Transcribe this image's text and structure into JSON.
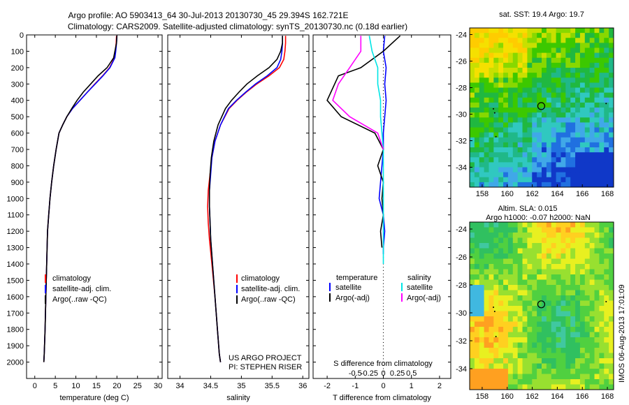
{
  "header": {
    "line1": "Argo profile: AO 5903413_64 30-Jul-2013 20130730_45 29.394S 162.721E",
    "line2": "Climatology: CARS2009. Satellite-adjusted climatology: synTS_20130730.nc (0.18d earlier)"
  },
  "colors": {
    "climatology": "#ff0000",
    "satellite": "#0000ff",
    "argo": "#000000",
    "sat_salinity": "#00e5e5",
    "argo_salinity": "#ff00ff"
  },
  "chart_data": [
    {
      "type": "line",
      "name": "temperature",
      "xlabel": "temperature (deg C)",
      "xlim": [
        -2,
        31
      ],
      "ylim": [
        2100,
        0
      ],
      "y_inverted": true,
      "xticks": [
        0,
        5,
        10,
        15,
        20,
        25,
        30
      ],
      "yticks": [
        0,
        100,
        200,
        300,
        400,
        500,
        600,
        700,
        800,
        900,
        1000,
        1100,
        1200,
        1300,
        1400,
        1500,
        1600,
        1700,
        1800,
        1900,
        2000
      ],
      "legend": [
        "climatology",
        "satellite-adj. clim.",
        "Argo(..raw -QC)"
      ],
      "series": [
        {
          "name": "climatology",
          "x": [
            19.9,
            19.8,
            19.6,
            19.4,
            18.2,
            16.5,
            14.6,
            12.8,
            11.0,
            9.2,
            7.8,
            6.8,
            5.9,
            5.2,
            4.6,
            4.1,
            3.7,
            3.4,
            3.1,
            2.9,
            2.7,
            2.5,
            2.3,
            2.2
          ],
          "y": [
            5,
            50,
            100,
            140,
            200,
            250,
            300,
            350,
            400,
            450,
            500,
            550,
            600,
            700,
            800,
            900,
            1000,
            1100,
            1200,
            1400,
            1600,
            1800,
            1950,
            2000
          ]
        },
        {
          "name": "satellite",
          "x": [
            20.0,
            19.9,
            19.7,
            19.5,
            18.3,
            16.6,
            14.7,
            12.8,
            11.0,
            9.2,
            7.8,
            6.8,
            5.9,
            5.2,
            4.6,
            4.1,
            3.7,
            3.4,
            3.1,
            2.9,
            2.7,
            2.5,
            2.3,
            2.2
          ],
          "y": [
            5,
            50,
            100,
            140,
            200,
            250,
            300,
            350,
            400,
            450,
            500,
            550,
            600,
            700,
            800,
            900,
            1000,
            1100,
            1200,
            1400,
            1600,
            1800,
            1950,
            2000
          ]
        },
        {
          "name": "argo",
          "x": [
            20.0,
            19.9,
            19.5,
            19.2,
            17.6,
            15.4,
            13.6,
            11.8,
            10.3,
            9.0,
            7.8,
            6.8,
            5.9,
            5.2,
            4.6,
            4.1,
            3.7,
            3.4,
            3.1,
            2.9,
            2.7,
            2.5,
            2.3,
            2.2
          ],
          "y": [
            5,
            50,
            100,
            140,
            200,
            250,
            300,
            350,
            400,
            450,
            500,
            550,
            600,
            700,
            800,
            900,
            1000,
            1100,
            1200,
            1400,
            1600,
            1800,
            1950,
            2000
          ]
        }
      ]
    },
    {
      "type": "line",
      "name": "salinity",
      "xlabel": "salinity",
      "xlim": [
        33.8,
        36.1
      ],
      "ylim": [
        2100,
        0
      ],
      "y_inverted": true,
      "xticks": [
        34,
        34.5,
        35,
        35.5,
        36
      ],
      "legend": [
        "climatology",
        "satellite-adj. clim.",
        "Argo(..raw -QC)"
      ],
      "annotation": [
        "US ARGO PROJECT",
        "PI: STEPHEN RISER"
      ],
      "series": [
        {
          "name": "climatology",
          "x": [
            35.72,
            35.72,
            35.71,
            35.69,
            35.62,
            35.45,
            35.25,
            35.08,
            34.93,
            34.8,
            34.66,
            34.57,
            34.52,
            34.49,
            34.46,
            34.45,
            34.46,
            34.48,
            34.52,
            34.57,
            34.61,
            34.64,
            34.66
          ],
          "y": [
            5,
            50,
            100,
            150,
            200,
            250,
            300,
            350,
            400,
            450,
            550,
            650,
            750,
            850,
            950,
            1050,
            1150,
            1250,
            1400,
            1600,
            1800,
            1950,
            2000
          ]
        },
        {
          "name": "satellite",
          "x": [
            35.67,
            35.67,
            35.66,
            35.64,
            35.58,
            35.42,
            35.23,
            35.07,
            34.92,
            34.79,
            34.66,
            34.57,
            34.52,
            34.5,
            34.48,
            34.48,
            34.49,
            34.5,
            34.53,
            34.57,
            34.61,
            34.64,
            34.66
          ],
          "y": [
            5,
            50,
            100,
            150,
            200,
            250,
            300,
            350,
            400,
            450,
            550,
            650,
            750,
            850,
            950,
            1050,
            1150,
            1250,
            1400,
            1600,
            1800,
            1950,
            2000
          ]
        },
        {
          "name": "argo",
          "x": [
            35.67,
            35.67,
            35.64,
            35.58,
            35.45,
            35.26,
            35.09,
            34.96,
            34.84,
            34.74,
            34.62,
            34.55,
            34.51,
            34.49,
            34.48,
            34.48,
            34.49,
            34.5,
            34.53,
            34.57,
            34.61,
            34.64,
            34.66
          ],
          "y": [
            5,
            50,
            100,
            150,
            200,
            250,
            300,
            350,
            400,
            450,
            550,
            650,
            750,
            850,
            950,
            1050,
            1150,
            1250,
            1400,
            1600,
            1800,
            1950,
            2000
          ]
        }
      ]
    },
    {
      "type": "line",
      "name": "differences",
      "xlabel": "T difference from climatology",
      "x2label": "S difference from climatology",
      "xlim": [
        -2.5,
        2.4
      ],
      "ylim": [
        2100,
        0
      ],
      "y_inverted": true,
      "xticks": [
        -2,
        -1,
        0,
        1,
        2
      ],
      "x2ticks": [
        -0.5,
        -0.25,
        0,
        0.25,
        0.5
      ],
      "legend_temperature_title": "temperature",
      "legend_salinity_title": "salinity",
      "legend_temperature": [
        "satellite",
        "Argo(-adj)"
      ],
      "legend_salinity": [
        "satellite",
        "Argo(-adj)"
      ],
      "series": [
        {
          "name": "T satellite",
          "x": [
            0.05,
            0.0,
            0.1,
            0.05,
            0.1,
            0.05,
            0.0,
            0.0,
            -0.05,
            -0.1,
            -0.15,
            0.0,
            0.05,
            0.0,
            0.0
          ],
          "y": [
            5,
            100,
            200,
            300,
            400,
            500,
            600,
            700,
            800,
            900,
            1000,
            1100,
            1200,
            1300,
            1340
          ]
        },
        {
          "name": "T argo",
          "x": [
            0.6,
            0.0,
            -0.8,
            -1.6,
            -2.0,
            -1.5,
            -0.3,
            0.0,
            -0.2,
            0.0,
            -0.05,
            0.0,
            -0.1,
            -0.05
          ],
          "y": [
            5,
            100,
            200,
            250,
            400,
            500,
            600,
            700,
            800,
            900,
            1000,
            1100,
            1200,
            1300
          ]
        },
        {
          "name": "S satellite",
          "x": [
            -0.25,
            -0.2,
            -0.1,
            -0.1,
            -0.05,
            -0.05,
            0.0,
            0.0,
            0.0,
            0.0,
            0.0
          ],
          "y": [
            5,
            100,
            200,
            300,
            400,
            500,
            700,
            900,
            1100,
            1300,
            1400
          ]
        },
        {
          "name": "S argo",
          "x": [
            -0.4,
            -0.4,
            -0.6,
            -0.8,
            -0.9,
            -0.6,
            -0.1,
            0.0
          ],
          "y": [
            5,
            100,
            200,
            300,
            400,
            500,
            600,
            700
          ]
        }
      ]
    },
    {
      "type": "heatmap",
      "name": "sst_map",
      "title": "sat. SST: 19.4 Argo: 19.7",
      "xticks": [
        158,
        160,
        162,
        164,
        166,
        168
      ],
      "yticks": [
        -24,
        -26,
        -28,
        -30,
        -32,
        -34
      ]
    },
    {
      "type": "heatmap",
      "name": "sla_map",
      "title": "Altim. SLA: 0.015",
      "subtitle": "Argo h1000: -0.07 h2000: NaN",
      "xticks": [
        158,
        160,
        162,
        164,
        166,
        168
      ],
      "yticks": [
        -24,
        -26,
        -28,
        -30,
        -32,
        -34
      ]
    }
  ],
  "sidebar_stamp": "IMOS 06-Aug-2013 17:01:09"
}
